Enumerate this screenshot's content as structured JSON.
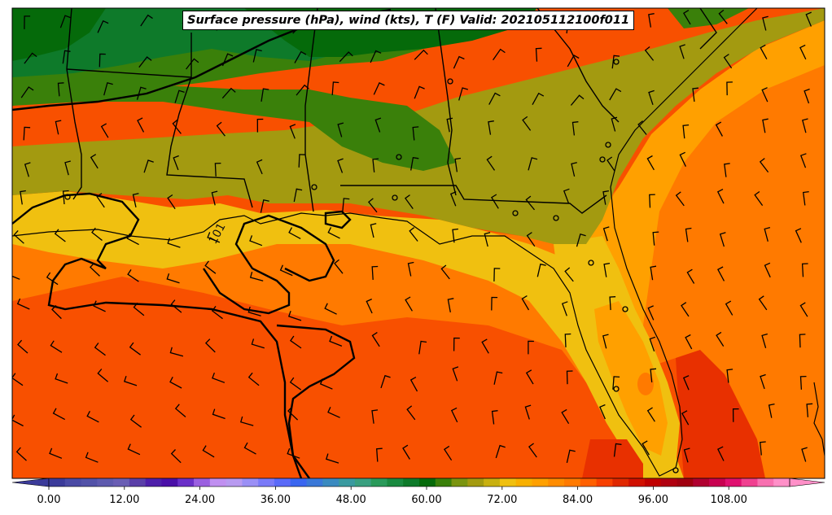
{
  "title": "Surface pressure (hPa), wind (kts), T (F) Valid: 202105112100f011",
  "contour_label": "101",
  "colorbar": {
    "tick_labels": [
      "0.00",
      "12.00",
      "24.00",
      "36.00",
      "48.00",
      "60.00",
      "72.00",
      "84.00",
      "96.00",
      "108.00"
    ],
    "colors": [
      "#3b3b9a",
      "#4a4aa5",
      "#5252a8",
      "#5e5aae",
      "#6a5eb4",
      "#5a3fa8",
      "#4e1faa",
      "#4a0fa8",
      "#6a2fc8",
      "#9a5fe0",
      "#c08ff0",
      "#b89af0",
      "#9a8ff5",
      "#7a7af8",
      "#5a6af8",
      "#3a66f0",
      "#3a78d8",
      "#3a8ac0",
      "#3a9aa0",
      "#3aa080",
      "#2a9a5a",
      "#1a8a40",
      "#0e7a2a",
      "#056a0a",
      "#3a800a",
      "#7a9410",
      "#a39a10",
      "#c8b010",
      "#f0c010",
      "#f8b000",
      "#ffa000",
      "#ff8c00",
      "#ff7a00",
      "#ff6000",
      "#f84000",
      "#e02800",
      "#d01000",
      "#c00000",
      "#b00010",
      "#a00010",
      "#b00030",
      "#c80050",
      "#e01070",
      "#f04090",
      "#f870b0",
      "#ff90c8"
    ]
  },
  "map": {
    "variable": "Temperature (F)",
    "colors": {
      "dark_green": "#056a0a",
      "mid_green": "#0e7a2a",
      "olive_green": "#3a800a",
      "olive": "#a39a10",
      "yellow": "#f0c010",
      "orange_light": "#ffa000",
      "orange": "#ff7a00",
      "orange_dark": "#f85000",
      "red_orange": "#e83000"
    }
  }
}
